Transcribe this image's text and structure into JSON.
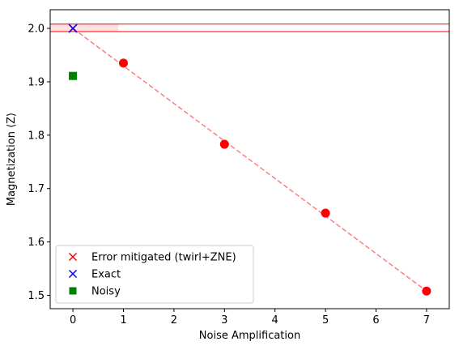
{
  "chart_data": {
    "type": "scatter",
    "xlabel": "Noise Amplification",
    "ylabel": "Magnetization ⟨Z⟩",
    "xlim": [
      -0.45,
      7.45
    ],
    "ylim": [
      1.475,
      2.035
    ],
    "xticks": [
      0,
      1,
      2,
      3,
      4,
      5,
      6,
      7
    ],
    "yticks": [
      1.5,
      1.6,
      1.7,
      1.8,
      1.9,
      2.0
    ],
    "grid": false,
    "legend_position": "lower-left",
    "error_band": {
      "y_low": 1.994,
      "y_high": 2.008,
      "x_shade_end": 0.9,
      "color": "#ff0000"
    },
    "series": [
      {
        "name": "Error mitigated (twirl+ZNE)",
        "marker": "x",
        "color": "#ff0000",
        "points": [
          {
            "x": 0,
            "y": 2.0
          }
        ],
        "fit_line": {
          "x": [
            0,
            7
          ],
          "y": [
            2.0,
            1.508
          ],
          "color": "#ff7f7f",
          "style": "dashed"
        }
      },
      {
        "name": "Exact",
        "marker": "x",
        "color": "#0000ff",
        "points": [
          {
            "x": 0,
            "y": 2.0
          }
        ]
      },
      {
        "name": "Noisy",
        "marker": "square",
        "color": "#008000",
        "points": [
          {
            "x": 0,
            "y": 1.911
          }
        ]
      },
      {
        "name": "",
        "marker": "circle",
        "color": "#ff0000",
        "points": [
          {
            "x": 1,
            "y": 1.935
          },
          {
            "x": 3,
            "y": 1.783
          },
          {
            "x": 5,
            "y": 1.654
          },
          {
            "x": 7,
            "y": 1.508
          }
        ]
      }
    ]
  }
}
